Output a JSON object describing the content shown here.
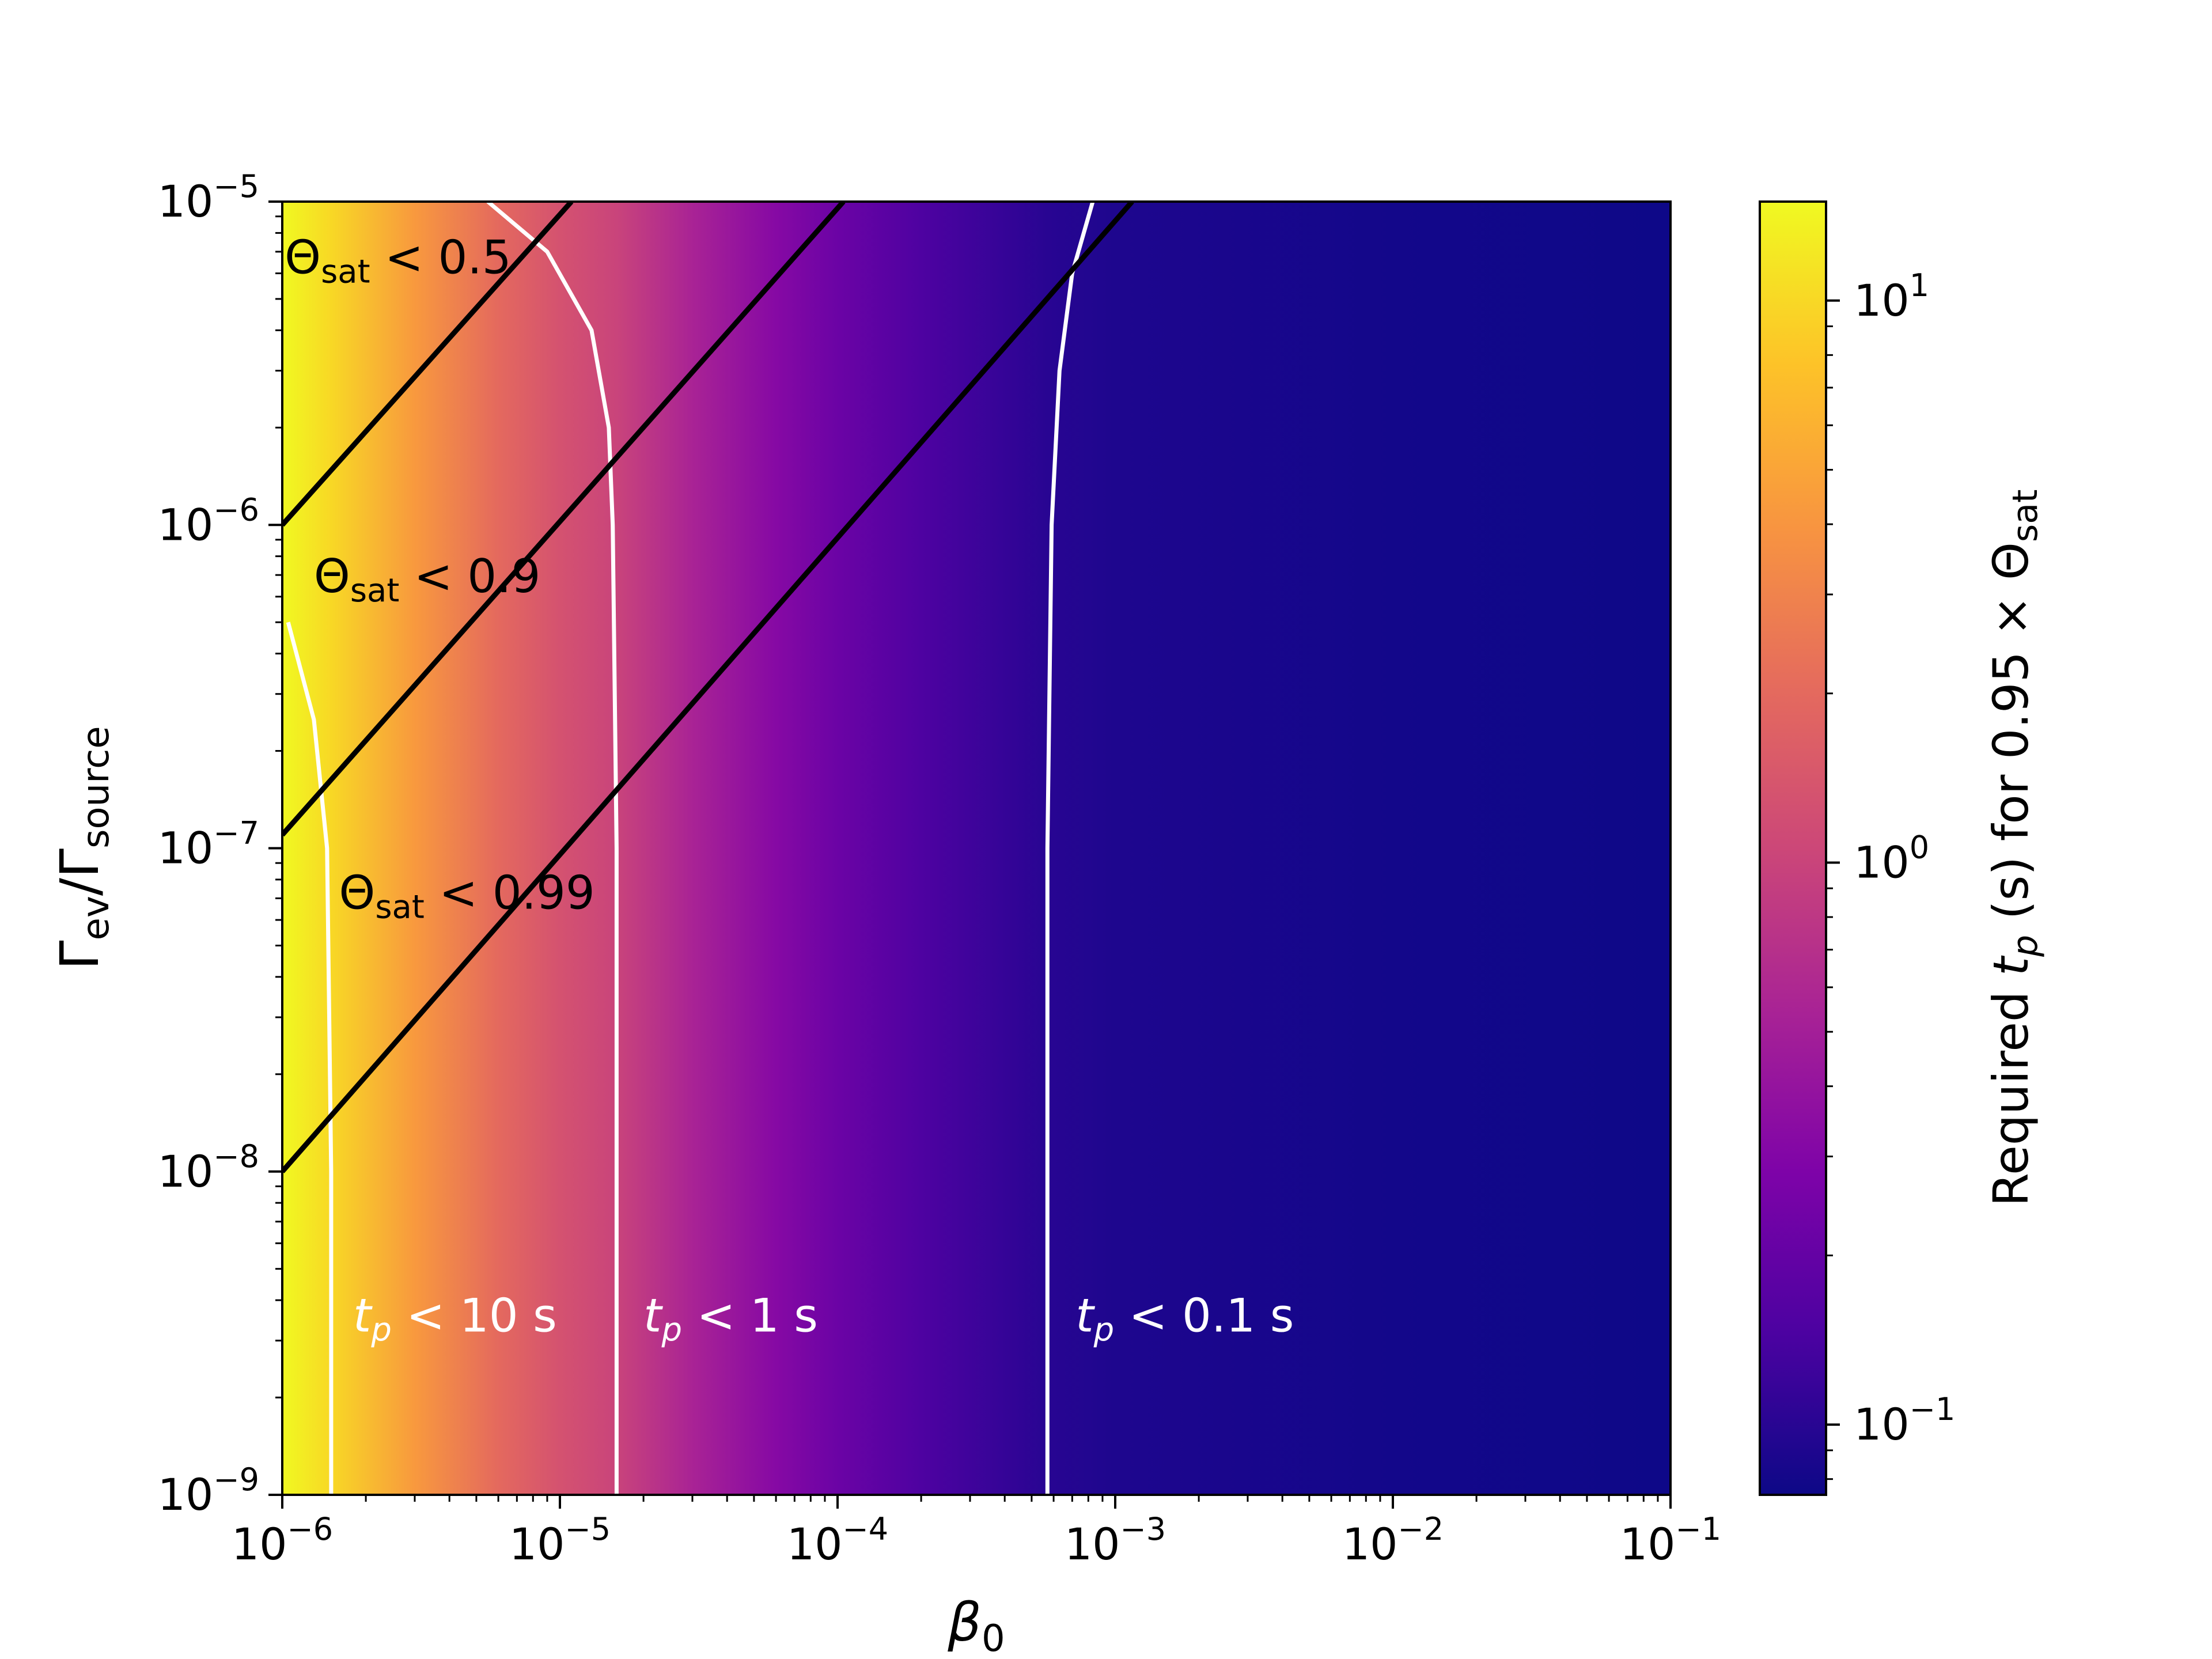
{
  "chart_data": {
    "type": "heatmap",
    "x": {
      "label": "β",
      "label_sub": "0",
      "scale": "log",
      "range": [
        1e-06,
        0.1
      ],
      "ticks": [
        {
          "value": 1e-06,
          "base": "10",
          "exp": "−6"
        },
        {
          "value": 1e-05,
          "base": "10",
          "exp": "−5"
        },
        {
          "value": 0.0001,
          "base": "10",
          "exp": "−4"
        },
        {
          "value": 0.001,
          "base": "10",
          "exp": "−3"
        },
        {
          "value": 0.01,
          "base": "10",
          "exp": "−2"
        },
        {
          "value": 0.1,
          "base": "10",
          "exp": "−1"
        }
      ]
    },
    "y": {
      "label_parts": [
        {
          "main": "Γ",
          "sub": "ev"
        },
        {
          "main": "/Γ",
          "sub": "source"
        }
      ],
      "scale": "log",
      "range": [
        1e-09,
        1e-05
      ],
      "ticks": [
        {
          "value": 1e-09,
          "base": "10",
          "exp": "−9"
        },
        {
          "value": 1e-08,
          "base": "10",
          "exp": "−8"
        },
        {
          "value": 1e-07,
          "base": "10",
          "exp": "−7"
        },
        {
          "value": 1e-06,
          "base": "10",
          "exp": "−6"
        },
        {
          "value": 1e-05,
          "base": "10",
          "exp": "−5"
        }
      ]
    },
    "colorbar": {
      "label": {
        "before": "Required ",
        "var": "t",
        "var_sub": "p",
        "middle": " (s) for 0.95 × Θ",
        "end_sub": "sat"
      },
      "scale": "log",
      "range": [
        0.075,
        15
      ],
      "colormap": "plasma",
      "ticks": [
        {
          "value": 0.1,
          "base": "10",
          "exp": "−1"
        },
        {
          "value": 1,
          "base": "10",
          "exp": "0"
        },
        {
          "value": 10,
          "base": "10",
          "exp": "1"
        }
      ]
    },
    "field_tp_vs_beta0": [
      {
        "beta0": 1e-06,
        "tp": 15
      },
      {
        "beta0": 1.5e-06,
        "tp": 10
      },
      {
        "beta0": 3e-06,
        "tp": 4.2
      },
      {
        "beta0": 6e-06,
        "tp": 2.0
      },
      {
        "beta0": 1e-05,
        "tp": 1.3
      },
      {
        "beta0": 1.6e-05,
        "tp": 1.0
      },
      {
        "beta0": 3e-05,
        "tp": 0.55
      },
      {
        "beta0": 6e-05,
        "tp": 0.32
      },
      {
        "beta0": 0.0001,
        "tp": 0.22
      },
      {
        "beta0": 0.0002,
        "tp": 0.15
      },
      {
        "beta0": 0.00057,
        "tp": 0.1
      },
      {
        "beta0": 0.001,
        "tp": 0.09
      },
      {
        "beta0": 0.01,
        "tp": 0.08
      },
      {
        "beta0": 0.1,
        "tp": 0.076
      }
    ],
    "theta_lines": [
      {
        "label_main": "Θ",
        "label_sub": "sat",
        "label_rest": " < 0.5",
        "points": [
          [
            1e-06,
            1e-06
          ],
          [
            1.1e-05,
            1e-05
          ]
        ]
      },
      {
        "label_main": "Θ",
        "label_sub": "sat",
        "label_rest": " < 0.9",
        "points": [
          [
            1e-06,
            1.1e-07
          ],
          [
            0.000105,
            1e-05
          ]
        ]
      },
      {
        "label_main": "Θ",
        "label_sub": "sat",
        "label_rest": " < 0.99",
        "points": [
          [
            1e-06,
            1e-08
          ],
          [
            0.00115,
            1e-05
          ]
        ]
      }
    ],
    "tp_contours": [
      {
        "label_var": "t",
        "label_sub": "p",
        "label_rest": " < 10 s",
        "points": [
          [
            1.5e-06,
            1e-09
          ],
          [
            1.5e-06,
            1e-08
          ],
          [
            1.45e-06,
            1e-07
          ],
          [
            1.3e-06,
            2.5e-07
          ],
          [
            1.05e-06,
            5e-07
          ]
        ]
      },
      {
        "label_var": "t",
        "label_sub": "p",
        "label_rest": " < 1 s",
        "points": [
          [
            1.6e-05,
            1e-09
          ],
          [
            1.6e-05,
            1e-07
          ],
          [
            1.55e-05,
            1e-06
          ],
          [
            1.5e-05,
            2e-06
          ],
          [
            1.3e-05,
            4e-06
          ],
          [
            9e-06,
            7e-06
          ],
          [
            5.5e-06,
            1e-05
          ]
        ]
      },
      {
        "label_var": "t",
        "label_sub": "p",
        "label_rest": " < 0.1 s",
        "points": [
          [
            0.00057,
            1e-09
          ],
          [
            0.00057,
            1e-07
          ],
          [
            0.00059,
            1e-06
          ],
          [
            0.00063,
            3e-06
          ],
          [
            0.0007,
            6e-06
          ],
          [
            0.00083,
            1e-05
          ]
        ]
      }
    ]
  }
}
